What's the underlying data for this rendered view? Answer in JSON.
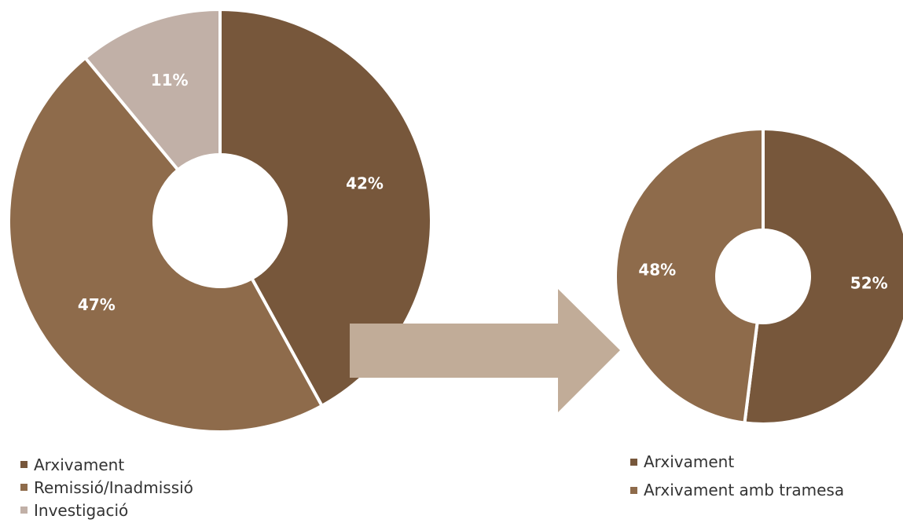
{
  "chart_data": [
    {
      "type": "pie",
      "title": "",
      "labels": [
        "Arxivament",
        "Remissió/Inadmissió",
        "Investigació"
      ],
      "values": [
        42,
        47,
        11
      ],
      "value_labels": [
        "42%",
        "47%",
        "11%"
      ],
      "colors": [
        "#77573b",
        "#8e6b4b",
        "#c1b0a7"
      ],
      "donut": true,
      "legend_position": "bottom-left"
    },
    {
      "type": "pie",
      "title": "",
      "labels": [
        "Arxivament",
        "Arxivament amb tramesa"
      ],
      "values": [
        52,
        48
      ],
      "value_labels": [
        "52%",
        "48%"
      ],
      "colors": [
        "#77573b",
        "#8e6b4b"
      ],
      "donut": true,
      "legend_position": "bottom-right"
    }
  ],
  "arrow": {
    "color": "#c1ac98"
  }
}
